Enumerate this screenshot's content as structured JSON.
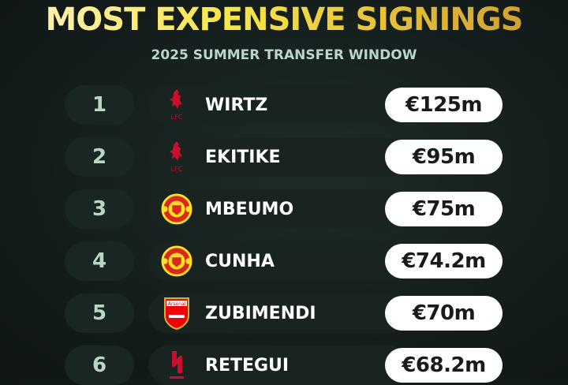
{
  "title": "MOST EXPENSIVE SIGNINGS",
  "subtitle": "2025 SUMMER TRANSFER WINDOW",
  "colors": {
    "title_gradient": [
      "#fff3c4",
      "#f8e64a",
      "#c9962e"
    ],
    "subtitle": "#b9d4c9",
    "background": "#141d1c"
  },
  "rows": [
    {
      "rank": "1",
      "name": "WIRTZ",
      "fee": "€125m",
      "crest": "liverpool-crest-icon"
    },
    {
      "rank": "2",
      "name": "EKITIKE",
      "fee": "€95m",
      "crest": "liverpool-crest-icon"
    },
    {
      "rank": "3",
      "name": "MBEUMO",
      "fee": "€75m",
      "crest": "manchester-united-crest-icon"
    },
    {
      "rank": "4",
      "name": "CUNHA",
      "fee": "€74.2m",
      "crest": "manchester-united-crest-icon"
    },
    {
      "rank": "5",
      "name": "ZUBIMENDI",
      "fee": "€70m",
      "crest": "arsenal-crest-icon"
    },
    {
      "rank": "6",
      "name": "RETEGUI",
      "fee": "€68.2m",
      "crest": "al-qadsiah-crest-icon"
    }
  ]
}
